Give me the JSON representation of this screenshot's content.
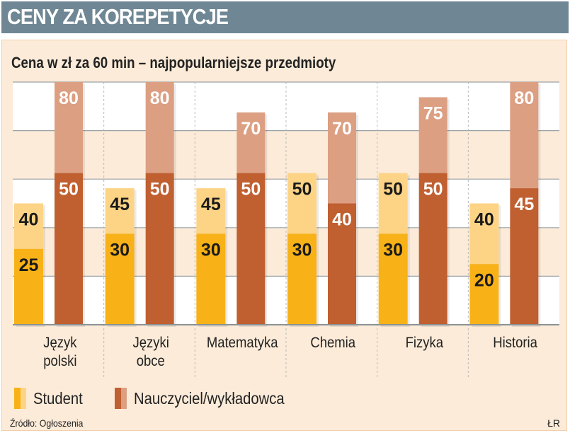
{
  "header": {
    "title": "CENY ZA KOREPETYCJE"
  },
  "chart_data": {
    "type": "bar",
    "subtitle": "Cena w zł za 60 min – najpopularniejsze przedmioty",
    "categories": [
      "Język polski",
      "Języki obce",
      "Matematyka",
      "Chemia",
      "Fizyka",
      "Historia"
    ],
    "category_lines": [
      [
        "Język",
        "polski"
      ],
      [
        "Języki",
        "obce"
      ],
      [
        "Matematyka"
      ],
      [
        "Chemia"
      ],
      [
        "Fizyka"
      ],
      [
        "Historia"
      ]
    ],
    "series": [
      {
        "name": "Student",
        "min": [
          25,
          30,
          30,
          30,
          30,
          20
        ],
        "max": [
          40,
          45,
          45,
          50,
          50,
          40
        ],
        "color_min": "#f8b217",
        "color_max": "#fdd486"
      },
      {
        "name": "Nauczyciel/wykładowca",
        "min": [
          50,
          50,
          50,
          40,
          50,
          45
        ],
        "max": [
          80,
          80,
          70,
          70,
          75,
          80
        ],
        "color_min": "#c05f30",
        "color_max": "#dc9f82"
      }
    ],
    "ylim": [
      0,
      80
    ],
    "grid": true,
    "legend": "bottom-left"
  },
  "footer": {
    "source": "Źródło: Ogłoszenia",
    "credit": "ŁR"
  },
  "colors": {
    "title_bar": "#6f8794",
    "panel": "#fcebd8"
  }
}
